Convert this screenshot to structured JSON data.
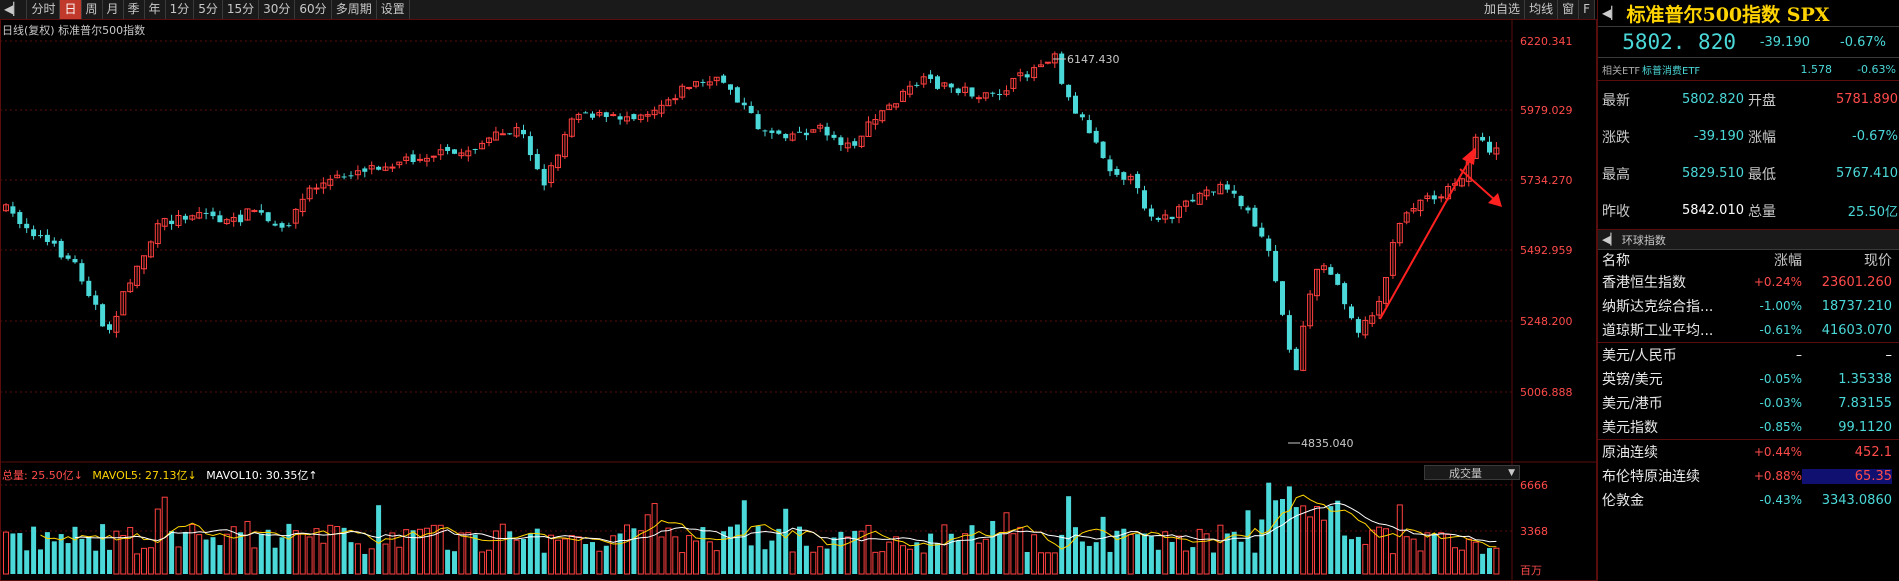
{
  "toolbar": {
    "items": [
      "分时",
      "日",
      "周",
      "月",
      "季",
      "年",
      "1分",
      "5分",
      "15分",
      "30分",
      "60分",
      "多周期",
      "设置"
    ],
    "active_index": 1,
    "right_items": [
      "加自选",
      "均线",
      "窗",
      "F"
    ]
  },
  "chart": {
    "title": "日线(复权) 标准普尔500指数",
    "price_axis": [
      "6220.341",
      "5979.029",
      "5734.270",
      "5492.959",
      "5248.200",
      "5006.888"
    ],
    "high_label": "6147.430",
    "low_label": "4835.040",
    "volume_axis": [
      "6666",
      "3368",
      "百万"
    ],
    "vol_title": {
      "total": "总量: 25.50亿↓",
      "mavol5": "MAVOL5: 27.13亿↓",
      "mavol10": "MAVOL10: 30.35亿↑"
    },
    "vol_select": "成交量",
    "colors": {
      "up": "#ff4040",
      "down": "#4bd8d8",
      "ma": "#ffffff",
      "annotation": "#ff2020"
    }
  },
  "panel": {
    "title": "标准普尔500指数 SPX",
    "last": "5802. 820",
    "change": "-39.190",
    "change_pct": "-0.67%",
    "etf": {
      "label": "相关ETF",
      "name": "标普消费ETF",
      "price": "1.578",
      "pct": "-0.63%"
    },
    "stats": [
      {
        "k": "最新",
        "v": "5802.820",
        "k2": "开盘",
        "v2": "5781.890"
      },
      {
        "k": "涨跌",
        "v": "-39.190",
        "k2": "涨幅",
        "v2": "-0.67%"
      },
      {
        "k": "最高",
        "v": "5829.510",
        "k2": "最低",
        "v2": "5767.410"
      },
      {
        "k": "昨收",
        "v": "5842.010",
        "k2": "总量",
        "v2": "25.50亿"
      }
    ],
    "indices_section": "环球指数",
    "indices_header": {
      "name": "名称",
      "pct": "涨幅",
      "price": "现价"
    },
    "indices": [
      {
        "name": "香港恒生指数",
        "pct": "+0.24%",
        "price": "23601.260",
        "dir": "up"
      },
      {
        "name": "纳斯达克综合指...",
        "pct": "-1.00%",
        "price": "18737.210",
        "dir": "dn"
      },
      {
        "name": "道琼斯工业平均...",
        "pct": "-0.61%",
        "price": "41603.070",
        "dir": "dn"
      },
      {
        "name": "美元/人民币",
        "pct": "–",
        "price": "–",
        "dir": "wh"
      },
      {
        "name": "英镑/美元",
        "pct": "-0.05%",
        "price": "1.35338",
        "dir": "dn"
      },
      {
        "name": "美元/港币",
        "pct": "-0.03%",
        "price": "7.83155",
        "dir": "dn"
      },
      {
        "name": "美元指数",
        "pct": "-0.85%",
        "price": "99.1120",
        "dir": "dn"
      },
      {
        "name": "原油连续",
        "pct": "+0.44%",
        "price": "452.1",
        "dir": "up"
      },
      {
        "name": "布伦特原油连续",
        "pct": "+0.88%",
        "price": "65.35",
        "dir": "up"
      },
      {
        "name": "伦敦金",
        "pct": "-0.43%",
        "price": "3343.0860",
        "dir": "dn"
      }
    ]
  }
}
